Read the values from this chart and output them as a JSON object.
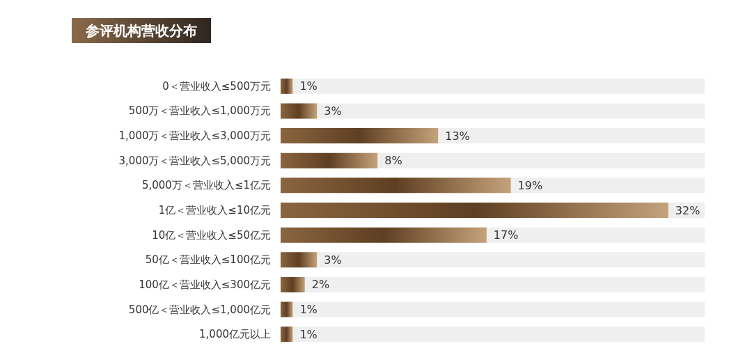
{
  "chart_data": {
    "type": "bar",
    "orientation": "horizontal",
    "title": "参评机构营收分布",
    "categories": [
      "0＜营业收入≤500万元",
      "500万＜营业收入≤1,000万元",
      "1,000万＜营业收入≤3,000万元",
      "3,000万＜营业收入≤5,000万元",
      "5,000万＜营业收入≤1亿元",
      "1亿＜营业收入≤10亿元",
      "10亿＜营业收入≤50亿元",
      "50亿＜营业收入≤100亿元",
      "100亿＜营业收入≤300亿元",
      "500亿＜营业收入≤1,000亿元",
      "1,000亿元以上"
    ],
    "values": [
      1,
      3,
      13,
      8,
      19,
      32,
      17,
      3,
      2,
      1,
      1
    ],
    "value_labels": [
      "1%",
      "3%",
      "13%",
      "8%",
      "19%",
      "32%",
      "17%",
      "3%",
      "2%",
      "1%",
      "1%"
    ],
    "color": "#8a6540",
    "tick_labels": "y",
    "grid": false
  }
}
